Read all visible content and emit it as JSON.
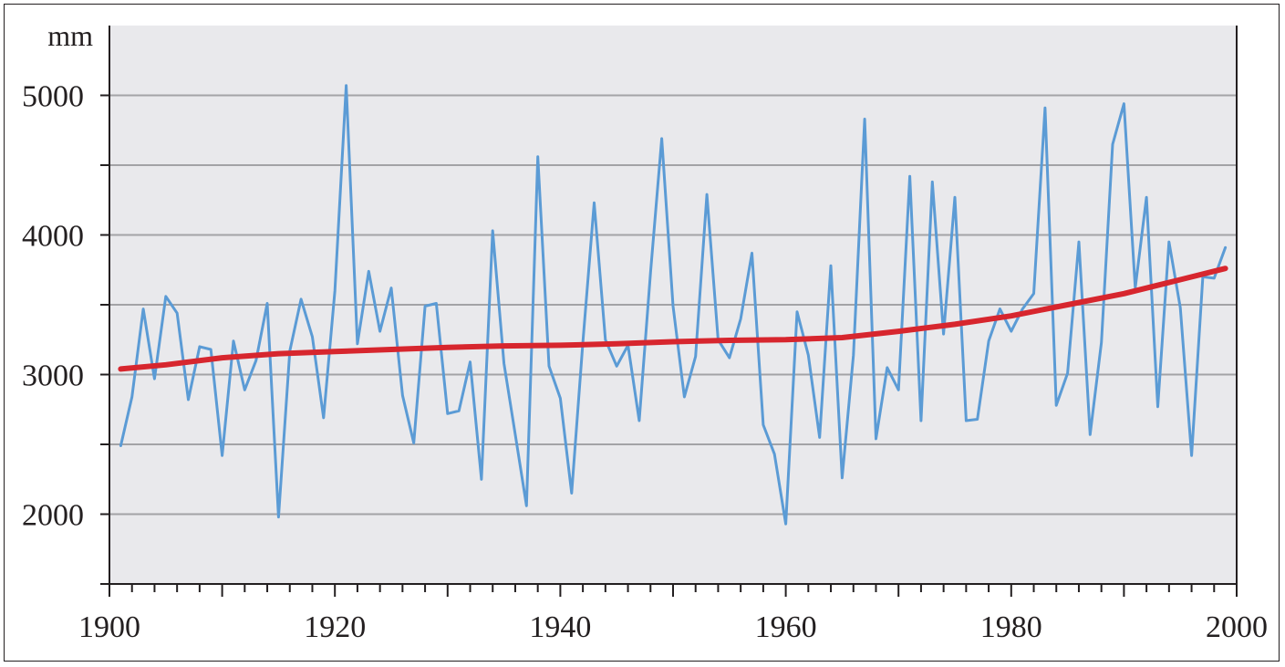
{
  "chart_data": {
    "type": "line",
    "title": "",
    "xlabel": "",
    "ylabel": "mm",
    "xlim": [
      1900,
      2000
    ],
    "ylim": [
      1500,
      5500
    ],
    "x_ticks": [
      "1900",
      "1920",
      "1940",
      "1960",
      "1980",
      "2000"
    ],
    "x_tick_values": [
      1900,
      1920,
      1940,
      1960,
      1980,
      2000
    ],
    "y_ticks": [
      "2000",
      "3000",
      "4000",
      "5000"
    ],
    "y_tick_values": [
      2000,
      3000,
      4000,
      5000
    ],
    "y_grid_values": [
      1500,
      2000,
      2500,
      3000,
      3500,
      4000,
      4500,
      5000
    ],
    "grid": true,
    "background": "#e9e9ec",
    "series": [
      {
        "color": "#5b9bd5",
        "x": [
          1901,
          1902,
          1903,
          1904,
          1905,
          1906,
          1907,
          1908,
          1909,
          1910,
          1911,
          1912,
          1913,
          1914,
          1915,
          1916,
          1917,
          1918,
          1919,
          1920,
          1921,
          1922,
          1923,
          1924,
          1925,
          1926,
          1927,
          1928,
          1929,
          1930,
          1931,
          1932,
          1933,
          1934,
          1935,
          1936,
          1937,
          1938,
          1939,
          1940,
          1941,
          1942,
          1943,
          1944,
          1945,
          1946,
          1947,
          1948,
          1949,
          1950,
          1951,
          1952,
          1953,
          1954,
          1955,
          1956,
          1957,
          1958,
          1959,
          1960,
          1961,
          1962,
          1963,
          1964,
          1965,
          1966,
          1967,
          1968,
          1969,
          1970,
          1971,
          1972,
          1973,
          1974,
          1975,
          1976,
          1977,
          1978,
          1979,
          1980,
          1981,
          1982,
          1983,
          1984,
          1985,
          1986,
          1987,
          1988,
          1989,
          1990,
          1991,
          1992,
          1993,
          1994,
          1995,
          1996,
          1997,
          1998,
          1999
        ],
        "y": [
          2490,
          2840,
          3470,
          2970,
          3560,
          3440,
          2820,
          3200,
          3180,
          2420,
          3240,
          2890,
          3100,
          3510,
          1980,
          3170,
          3540,
          3270,
          2690,
          3600,
          5070,
          3220,
          3740,
          3310,
          3620,
          2850,
          2510,
          3490,
          3510,
          2720,
          2740,
          3090,
          2250,
          4030,
          3080,
          2570,
          2060,
          4560,
          3060,
          2830,
          2150,
          3230,
          4230,
          3250,
          3060,
          3210,
          2670,
          3730,
          4690,
          3490,
          2840,
          3130,
          4290,
          3250,
          3120,
          3400,
          3870,
          2640,
          2430,
          1930,
          3450,
          3140,
          2550,
          3780,
          2260,
          3140,
          4830,
          2540,
          3050,
          2890,
          4420,
          2670,
          4380,
          3290,
          4270,
          2670,
          2680,
          3240,
          3470,
          3310,
          3470,
          3580,
          4910,
          2780,
          3010,
          3950,
          2570,
          3230,
          4650,
          4940,
          3620,
          4270,
          2770,
          3950,
          3480,
          2420,
          3700,
          3690,
          3910
        ]
      },
      {
        "color": "#d7262e",
        "x": [
          1901,
          1905,
          1910,
          1915,
          1920,
          1925,
          1930,
          1935,
          1940,
          1945,
          1950,
          1955,
          1960,
          1965,
          1970,
          1975,
          1980,
          1985,
          1990,
          1995,
          1999
        ],
        "y": [
          3040,
          3070,
          3120,
          3150,
          3165,
          3180,
          3195,
          3205,
          3210,
          3220,
          3235,
          3245,
          3250,
          3265,
          3310,
          3360,
          3420,
          3500,
          3580,
          3680,
          3760
        ]
      }
    ]
  }
}
